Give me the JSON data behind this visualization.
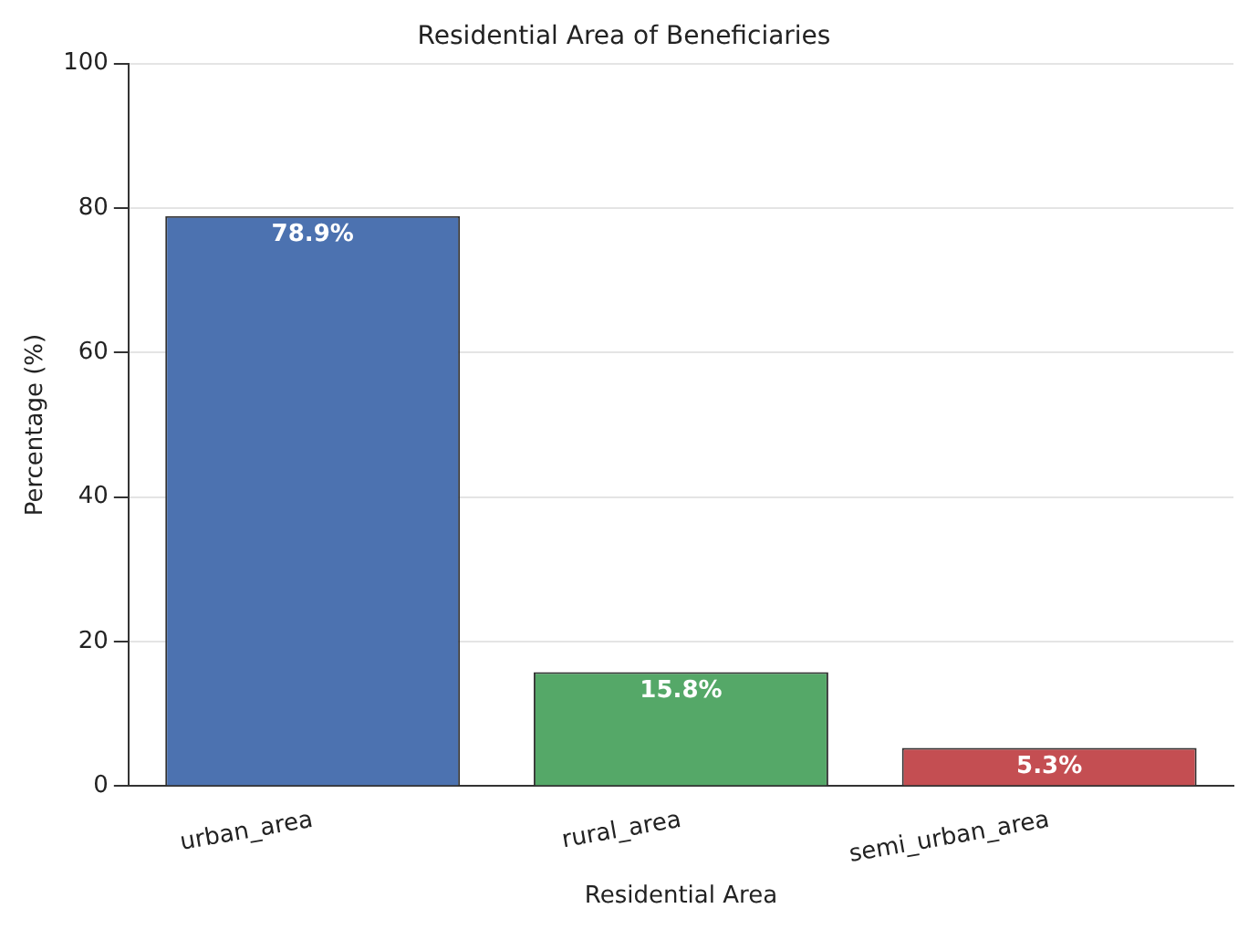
{
  "chart_data": {
    "type": "bar",
    "title": "Residential Area of Beneficiaries",
    "xlabel": "Residential Area",
    "ylabel": "Percentage (%)",
    "categories": [
      "urban_area",
      "rural_area",
      "semi_urban_area"
    ],
    "values": [
      78.9,
      15.8,
      5.3
    ],
    "colors": [
      "#4c72b0",
      "#55a868",
      "#c44e52"
    ],
    "value_labels": [
      "78.9%",
      "15.8%",
      "5.3%"
    ],
    "ylim": [
      0,
      100
    ],
    "yticks": [
      0,
      20,
      40,
      60,
      80,
      100
    ],
    "grid": "y",
    "legend": false
  }
}
